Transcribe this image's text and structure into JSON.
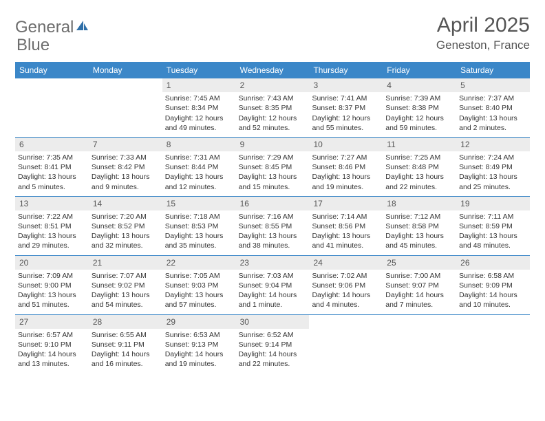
{
  "logo": {
    "text1": "General",
    "text2": "Blue"
  },
  "title": "April 2025",
  "location": "Geneston, France",
  "colors": {
    "header_bg": "#3b87c8",
    "header_text": "#ffffff",
    "daynum_bg": "#ececec",
    "border": "#3b87c8",
    "title_text": "#555555",
    "body_text": "#333333",
    "logo_fill": "#2f6fa8"
  },
  "weekdays": [
    "Sunday",
    "Monday",
    "Tuesday",
    "Wednesday",
    "Thursday",
    "Friday",
    "Saturday"
  ],
  "weeks": [
    [
      null,
      null,
      {
        "n": "1",
        "sr": "7:45 AM",
        "ss": "8:34 PM",
        "dl": "12 hours and 49 minutes."
      },
      {
        "n": "2",
        "sr": "7:43 AM",
        "ss": "8:35 PM",
        "dl": "12 hours and 52 minutes."
      },
      {
        "n": "3",
        "sr": "7:41 AM",
        "ss": "8:37 PM",
        "dl": "12 hours and 55 minutes."
      },
      {
        "n": "4",
        "sr": "7:39 AM",
        "ss": "8:38 PM",
        "dl": "12 hours and 59 minutes."
      },
      {
        "n": "5",
        "sr": "7:37 AM",
        "ss": "8:40 PM",
        "dl": "13 hours and 2 minutes."
      }
    ],
    [
      {
        "n": "6",
        "sr": "7:35 AM",
        "ss": "8:41 PM",
        "dl": "13 hours and 5 minutes."
      },
      {
        "n": "7",
        "sr": "7:33 AM",
        "ss": "8:42 PM",
        "dl": "13 hours and 9 minutes."
      },
      {
        "n": "8",
        "sr": "7:31 AM",
        "ss": "8:44 PM",
        "dl": "13 hours and 12 minutes."
      },
      {
        "n": "9",
        "sr": "7:29 AM",
        "ss": "8:45 PM",
        "dl": "13 hours and 15 minutes."
      },
      {
        "n": "10",
        "sr": "7:27 AM",
        "ss": "8:46 PM",
        "dl": "13 hours and 19 minutes."
      },
      {
        "n": "11",
        "sr": "7:25 AM",
        "ss": "8:48 PM",
        "dl": "13 hours and 22 minutes."
      },
      {
        "n": "12",
        "sr": "7:24 AM",
        "ss": "8:49 PM",
        "dl": "13 hours and 25 minutes."
      }
    ],
    [
      {
        "n": "13",
        "sr": "7:22 AM",
        "ss": "8:51 PM",
        "dl": "13 hours and 29 minutes."
      },
      {
        "n": "14",
        "sr": "7:20 AM",
        "ss": "8:52 PM",
        "dl": "13 hours and 32 minutes."
      },
      {
        "n": "15",
        "sr": "7:18 AM",
        "ss": "8:53 PM",
        "dl": "13 hours and 35 minutes."
      },
      {
        "n": "16",
        "sr": "7:16 AM",
        "ss": "8:55 PM",
        "dl": "13 hours and 38 minutes."
      },
      {
        "n": "17",
        "sr": "7:14 AM",
        "ss": "8:56 PM",
        "dl": "13 hours and 41 minutes."
      },
      {
        "n": "18",
        "sr": "7:12 AM",
        "ss": "8:58 PM",
        "dl": "13 hours and 45 minutes."
      },
      {
        "n": "19",
        "sr": "7:11 AM",
        "ss": "8:59 PM",
        "dl": "13 hours and 48 minutes."
      }
    ],
    [
      {
        "n": "20",
        "sr": "7:09 AM",
        "ss": "9:00 PM",
        "dl": "13 hours and 51 minutes."
      },
      {
        "n": "21",
        "sr": "7:07 AM",
        "ss": "9:02 PM",
        "dl": "13 hours and 54 minutes."
      },
      {
        "n": "22",
        "sr": "7:05 AM",
        "ss": "9:03 PM",
        "dl": "13 hours and 57 minutes."
      },
      {
        "n": "23",
        "sr": "7:03 AM",
        "ss": "9:04 PM",
        "dl": "14 hours and 1 minute."
      },
      {
        "n": "24",
        "sr": "7:02 AM",
        "ss": "9:06 PM",
        "dl": "14 hours and 4 minutes."
      },
      {
        "n": "25",
        "sr": "7:00 AM",
        "ss": "9:07 PM",
        "dl": "14 hours and 7 minutes."
      },
      {
        "n": "26",
        "sr": "6:58 AM",
        "ss": "9:09 PM",
        "dl": "14 hours and 10 minutes."
      }
    ],
    [
      {
        "n": "27",
        "sr": "6:57 AM",
        "ss": "9:10 PM",
        "dl": "14 hours and 13 minutes."
      },
      {
        "n": "28",
        "sr": "6:55 AM",
        "ss": "9:11 PM",
        "dl": "14 hours and 16 minutes."
      },
      {
        "n": "29",
        "sr": "6:53 AM",
        "ss": "9:13 PM",
        "dl": "14 hours and 19 minutes."
      },
      {
        "n": "30",
        "sr": "6:52 AM",
        "ss": "9:14 PM",
        "dl": "14 hours and 22 minutes."
      },
      null,
      null,
      null
    ]
  ],
  "labels": {
    "sunrise": "Sunrise: ",
    "sunset": "Sunset: ",
    "daylight": "Daylight: "
  }
}
